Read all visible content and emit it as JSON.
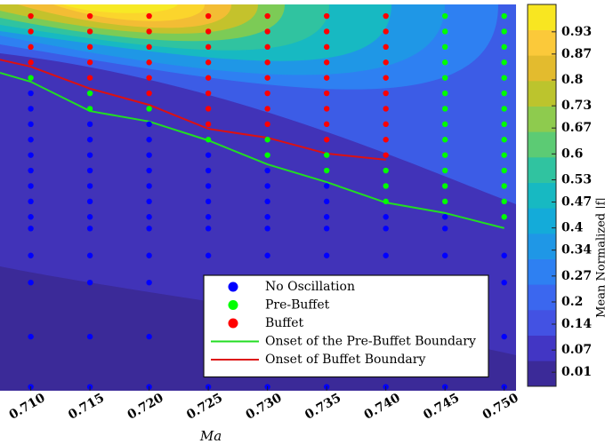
{
  "chart_data": {
    "type": "scatter",
    "xlabel": "Ma",
    "xlim": [
      0.7074,
      0.751
    ],
    "xticks": [
      {
        "value": 0.71,
        "label": "0.710"
      },
      0.715,
      {
        "value": 0.72,
        "label": "0.720"
      },
      0.725,
      {
        "value": 0.73,
        "label": "0.730"
      },
      0.735,
      {
        "value": 0.74,
        "label": "0.740"
      },
      0.745,
      {
        "value": 0.75,
        "label": "0.750"
      }
    ],
    "ylim": [
      0,
      100
    ],
    "legend": "lower-right",
    "colorbar": {
      "label": "Mean Normalized |f|",
      "clim": [
        -0.028,
        1.004
      ],
      "ticks": [
        0.93,
        0.87,
        0.8,
        0.73,
        0.67,
        0.6,
        0.53,
        0.47,
        0.4,
        0.34,
        0.27,
        0.2,
        0.14,
        0.07,
        0.01
      ],
      "colormap": [
        "#3b2a98",
        "#4236c4",
        "#4352e3",
        "#3b67ef",
        "#2e80f2",
        "#1f97e6",
        "#14abd9",
        "#17b9c2",
        "#30c3a0",
        "#5ccb74",
        "#8ecb4e",
        "#bcc42d",
        "#e3bb2e",
        "#fbc93a",
        "#f8e621"
      ]
    },
    "series": [
      {
        "name": "No Oscillation",
        "type": "scatter",
        "color": "#0000ff",
        "x": [
          0.71,
          0.71,
          0.71,
          0.71,
          0.71,
          0.71,
          0.71,
          0.71,
          0.71,
          0.71,
          0.71,
          0.71,
          0.71,
          0.71,
          0.715,
          0.715,
          0.715,
          0.715,
          0.715,
          0.715,
          0.715,
          0.715,
          0.715,
          0.715,
          0.715,
          0.715,
          0.72,
          0.72,
          0.72,
          0.72,
          0.72,
          0.72,
          0.72,
          0.72,
          0.72,
          0.72,
          0.72,
          0.72,
          0.725,
          0.725,
          0.725,
          0.725,
          0.725,
          0.725,
          0.725,
          0.725,
          0.725,
          0.725,
          0.73,
          0.73,
          0.73,
          0.73,
          0.73,
          0.73,
          0.73,
          0.73,
          0.73,
          0.735,
          0.735,
          0.735,
          0.735,
          0.735,
          0.735,
          0.735,
          0.735,
          0.74,
          0.74,
          0.74,
          0.74,
          0.74,
          0.74,
          0.745,
          0.745,
          0.745,
          0.745,
          0.745,
          0.745,
          0.75,
          0.75,
          0.75,
          0.75
        ],
        "values": [
          77,
          73,
          69,
          65,
          61,
          57,
          53,
          49,
          45,
          42,
          35,
          28,
          14,
          1,
          69,
          65,
          61,
          57,
          53,
          49,
          45,
          42,
          35,
          28,
          14,
          1,
          69,
          65,
          61,
          57,
          53,
          49,
          45,
          42,
          35,
          28,
          14,
          1,
          61,
          57,
          53,
          49,
          45,
          42,
          35,
          28,
          14,
          1,
          57,
          53,
          49,
          45,
          42,
          35,
          28,
          14,
          1,
          53,
          49,
          45,
          42,
          35,
          28,
          14,
          1,
          45,
          42,
          35,
          28,
          14,
          1,
          45,
          42,
          35,
          28,
          14,
          1,
          35,
          28,
          14,
          1
        ]
      },
      {
        "name": "Pre-Buffet",
        "type": "scatter",
        "color": "#00ff00",
        "x": [
          0.71,
          0.715,
          0.715,
          0.72,
          0.725,
          0.73,
          0.73,
          0.735,
          0.735,
          0.74,
          0.74,
          0.74,
          0.745,
          0.745,
          0.745,
          0.745,
          0.745,
          0.745,
          0.745,
          0.745,
          0.745,
          0.745,
          0.745,
          0.745,
          0.745,
          0.75,
          0.75,
          0.75,
          0.75,
          0.75,
          0.75,
          0.75,
          0.75,
          0.75,
          0.75,
          0.75,
          0.75,
          0.75,
          0.75
        ],
        "values": [
          81,
          77,
          73,
          73,
          65,
          65,
          61,
          61,
          57,
          57,
          53,
          49,
          97,
          93,
          89,
          85,
          81,
          77,
          73,
          69,
          65,
          61,
          57,
          53,
          49,
          97,
          93,
          89,
          85,
          81,
          77,
          73,
          69,
          65,
          61,
          57,
          53,
          49,
          45
        ]
      },
      {
        "name": "Buffet",
        "type": "scatter",
        "color": "#ff0000",
        "x": [
          0.71,
          0.71,
          0.71,
          0.71,
          0.715,
          0.715,
          0.715,
          0.715,
          0.715,
          0.72,
          0.72,
          0.72,
          0.72,
          0.72,
          0.72,
          0.725,
          0.725,
          0.725,
          0.725,
          0.725,
          0.725,
          0.725,
          0.725,
          0.73,
          0.73,
          0.73,
          0.73,
          0.73,
          0.73,
          0.73,
          0.73,
          0.735,
          0.735,
          0.735,
          0.735,
          0.735,
          0.735,
          0.735,
          0.735,
          0.735,
          0.74,
          0.74,
          0.74,
          0.74,
          0.74,
          0.74,
          0.74,
          0.74,
          0.74,
          0.74
        ],
        "values": [
          97,
          93,
          89,
          85,
          97,
          93,
          89,
          85,
          81,
          97,
          93,
          89,
          85,
          81,
          77,
          97,
          93,
          89,
          85,
          81,
          77,
          73,
          69,
          97,
          93,
          89,
          85,
          81,
          77,
          73,
          69,
          97,
          93,
          89,
          85,
          81,
          77,
          73,
          69,
          65,
          97,
          93,
          89,
          85,
          81,
          77,
          73,
          69,
          65,
          61
        ]
      },
      {
        "name": "Onset of the Pre-Buffet Boundary",
        "type": "line",
        "color": "#22dd22",
        "x": [
          0.7074,
          0.71,
          0.715,
          0.72,
          0.725,
          0.73,
          0.735,
          0.74,
          0.745,
          0.75
        ],
        "values": [
          82.3,
          80,
          72.4,
          69.7,
          64.8,
          58.6,
          54,
          48.7,
          46,
          42.1
        ]
      },
      {
        "name": "Onset of Buffet Boundary",
        "type": "line",
        "color": "#dd1111",
        "x": [
          0.7074,
          0.71,
          0.715,
          0.72,
          0.725,
          0.73,
          0.735,
          0.74
        ],
        "values": [
          85.7,
          83.9,
          78.2,
          74,
          67.8,
          65.5,
          61.4,
          59.8
        ]
      }
    ]
  }
}
